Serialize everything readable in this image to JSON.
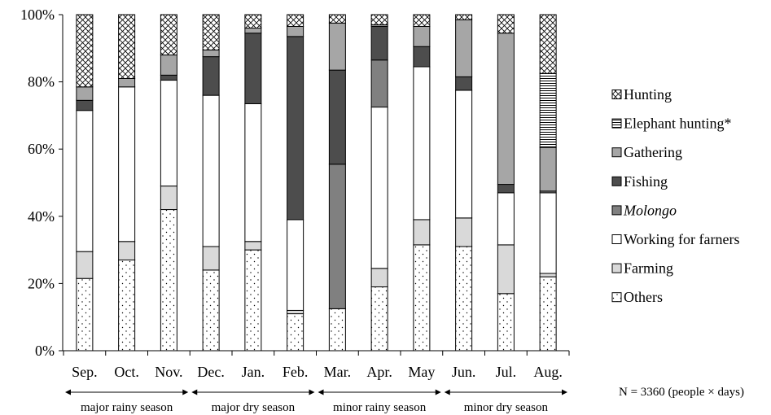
{
  "chart_data": {
    "type": "bar",
    "stacked": true,
    "normalized_to_percent": true,
    "ylim": [
      0,
      100
    ],
    "y_ticks": [
      "0%",
      "20%",
      "40%",
      "60%",
      "80%",
      "100%"
    ],
    "categories": [
      "Sep.",
      "Oct.",
      "Nov.",
      "Dec.",
      "Jan.",
      "Feb.",
      "Mar.",
      "Apr.",
      "May",
      "Jun.",
      "Jul.",
      "Aug."
    ],
    "series": [
      {
        "name": "Others",
        "pattern": "dots",
        "color": "#ffffff",
        "values": [
          21.5,
          27,
          42,
          24,
          30,
          11,
          12.5,
          19,
          31.5,
          31,
          17,
          22
        ]
      },
      {
        "name": "Farming",
        "pattern": "solid",
        "color": "#d9d9d9",
        "values": [
          8,
          5.5,
          7,
          7,
          2.5,
          1,
          0,
          5.5,
          7.5,
          8.5,
          14.5,
          1
        ]
      },
      {
        "name": "Working for farners",
        "pattern": "solid",
        "color": "#ffffff",
        "values": [
          42,
          46,
          31.5,
          45,
          41,
          27,
          0,
          48,
          45.5,
          38,
          15.5,
          24
        ]
      },
      {
        "name": "Molongo",
        "italic": true,
        "pattern": "solid",
        "color": "#808080",
        "values": [
          0,
          0,
          0,
          0,
          0,
          0,
          43,
          14,
          0,
          0,
          0,
          0.5
        ]
      },
      {
        "name": "Fishing",
        "pattern": "solid",
        "color": "#4d4d4d",
        "values": [
          3,
          0,
          1.5,
          11.5,
          21,
          54.5,
          28,
          10,
          6,
          4,
          2.5,
          0
        ]
      },
      {
        "name": "Gathering",
        "pattern": "solid",
        "color": "#a6a6a6",
        "values": [
          4,
          2.5,
          6,
          2,
          1.5,
          3,
          14,
          0.5,
          6,
          17,
          45,
          13
        ]
      },
      {
        "name": "Elephant hunting*",
        "pattern": "hstripes",
        "color": "#ffffff",
        "values": [
          0,
          0,
          0,
          0,
          0,
          0,
          0,
          0,
          0,
          0,
          0,
          22
        ]
      },
      {
        "name": "Hunting",
        "pattern": "crosshatch",
        "color": "#ffffff",
        "values": [
          21.5,
          19,
          12,
          10.5,
          4,
          3.5,
          2.5,
          3,
          3.5,
          1.5,
          5.5,
          17.5
        ]
      }
    ],
    "legend": {
      "placement": "right",
      "order": [
        "Hunting",
        "Elephant hunting*",
        "Gathering",
        "Fishing",
        "Molongo",
        "Working for farners",
        "Farming",
        "Others"
      ]
    },
    "seasons": [
      {
        "label": "major rainy season",
        "start": "Sep.",
        "end": "Nov."
      },
      {
        "label": "major dry season",
        "start": "Dec.",
        "end": "Feb."
      },
      {
        "label": "minor rainy season",
        "start": "Mar.",
        "end": "May"
      },
      {
        "label": "minor dry season",
        "start": "Jun.",
        "end": "Aug."
      }
    ],
    "note": "N = 3360 (people × days)",
    "grid": false
  }
}
